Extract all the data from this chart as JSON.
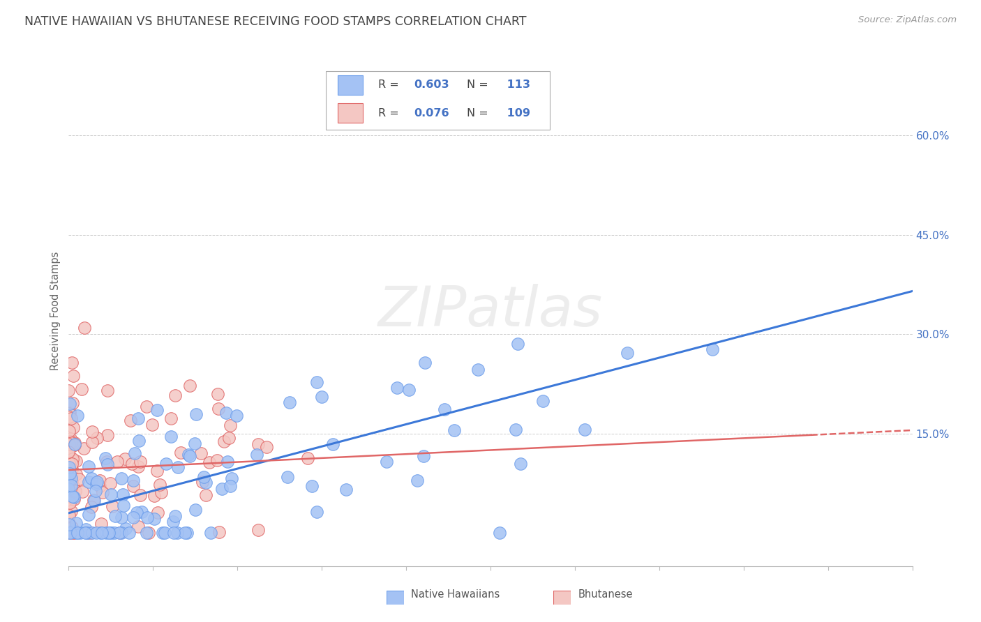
{
  "title": "NATIVE HAWAIIAN VS BHUTANESE RECEIVING FOOD STAMPS CORRELATION CHART",
  "source": "Source: ZipAtlas.com",
  "ylabel": "Receiving Food Stamps",
  "r_hawaiian": 0.603,
  "n_hawaiian": 113,
  "r_bhutanese": 0.076,
  "n_bhutanese": 109,
  "color_hawaiian": "#a4c2f4",
  "color_bhutanese": "#f4c7c3",
  "color_edge_hawaiian": "#6d9eeb",
  "color_edge_bhutanese": "#e06666",
  "color_line_hawaiian": "#3c78d8",
  "color_line_bhutanese": "#e06666",
  "color_axis_blue": "#4472c4",
  "color_grid": "#b7b7b7",
  "color_title": "#434343",
  "color_source": "#999999",
  "color_legend_label": "#434343",
  "color_legend_value": "#4472c4",
  "color_ylabel": "#666666",
  "watermark": "ZIPatlas",
  "yticks_right": [
    "60.0%",
    "45.0%",
    "30.0%",
    "15.0%"
  ],
  "yticks_right_vals": [
    0.6,
    0.45,
    0.3,
    0.15
  ],
  "xlim": [
    0.0,
    1.0
  ],
  "ylim": [
    -0.05,
    0.72
  ],
  "figsize": [
    14.06,
    8.92
  ],
  "dpi": 100,
  "line_haw_x0": 0.0,
  "line_haw_y0": 0.03,
  "line_haw_x1": 1.0,
  "line_haw_y1": 0.365,
  "line_bhu_x0": 0.0,
  "line_bhu_y0": 0.095,
  "line_bhu_x1": 1.0,
  "line_bhu_y1": 0.155
}
